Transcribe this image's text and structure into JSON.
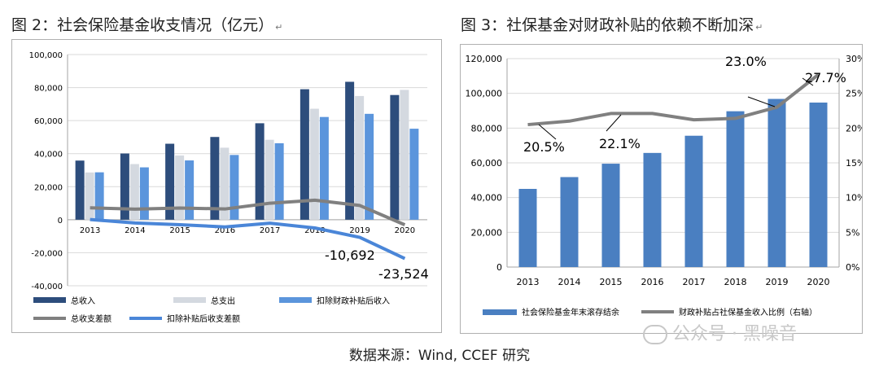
{
  "left": {
    "title": "图 2：社会保险基金收支情况（亿元）",
    "chart_data": {
      "type": "bar",
      "categories": [
        "2013",
        "2014",
        "2015",
        "2016",
        "2017",
        "2018",
        "2019",
        "2020"
      ],
      "ylim": [
        -40000,
        100000
      ],
      "yticks": [
        "100,000",
        "80,000",
        "60,000",
        "40,000",
        "20,000",
        "0",
        "-20,000",
        "-40,000"
      ],
      "series": [
        {
          "name": "总收入",
          "kind": "bar",
          "color": "#2d4d7c",
          "values": [
            35800,
            40100,
            46000,
            50100,
            58400,
            79000,
            83500,
            75500
          ]
        },
        {
          "name": "总支出",
          "kind": "bar",
          "color": "#d4d9e0",
          "values": [
            28600,
            33700,
            38900,
            43600,
            48400,
            67200,
            74900,
            78600
          ]
        },
        {
          "name": "扣除财政补贴后收入",
          "kind": "bar",
          "color": "#5b95dc",
          "values": [
            28700,
            31700,
            35900,
            39200,
            46300,
            62200,
            64100,
            55100
          ]
        },
        {
          "name": "总收支差额",
          "kind": "line",
          "color": "#808080",
          "values": [
            7200,
            6400,
            7100,
            6500,
            10000,
            11800,
            8600,
            -3100
          ]
        },
        {
          "name": "扣除补贴后收支差额",
          "kind": "line",
          "color": "#4a86d8",
          "values": [
            100,
            -2000,
            -3000,
            -4400,
            -2100,
            -5000,
            -10692,
            -23524
          ]
        }
      ],
      "annotations": [
        "-10,692",
        "-23,524"
      ]
    }
  },
  "right": {
    "title": "图 3：社保基金对财政补贴的依赖不断加深",
    "chart_data": {
      "type": "bar",
      "categories": [
        "2013",
        "2014",
        "2015",
        "2016",
        "2017",
        "2018",
        "2019",
        "2020"
      ],
      "ylim": [
        0,
        120000
      ],
      "y2lim": [
        0,
        30
      ],
      "yticks": [
        "120,000",
        "100,000",
        "80,000",
        "60,000",
        "40,000",
        "20,000",
        "0"
      ],
      "y2ticks": [
        "30%",
        "25%",
        "20%",
        "15%",
        "10%",
        "5%",
        "0%"
      ],
      "series": [
        {
          "name": "社会保险基金年末滚存结余",
          "kind": "bar",
          "color": "#4a7fc1",
          "values": [
            45000,
            51800,
            59500,
            65700,
            75600,
            89700,
            96800,
            94700
          ]
        },
        {
          "name": "财政补贴占社保基金收入比例（右轴）",
          "kind": "line",
          "color": "#808080",
          "values": [
            20.5,
            21.0,
            22.1,
            22.1,
            21.2,
            21.4,
            23.0,
            27.7
          ]
        }
      ],
      "annotations": [
        "20.5%",
        "22.1%",
        "23.0%",
        "27.7%"
      ]
    }
  },
  "source": "数据来源：Wind, CCEF 研究",
  "watermark": "公众号 · 黑噪音"
}
